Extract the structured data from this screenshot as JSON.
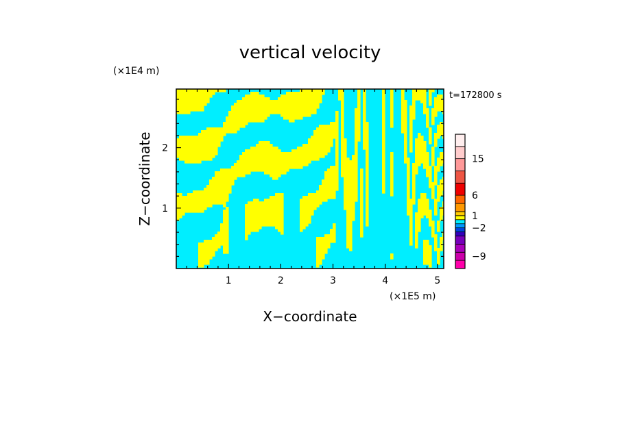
{
  "chart_data": {
    "type": "heatmap",
    "title": "vertical velocity",
    "xlabel": "X−coordinate",
    "ylabel": "Z−coordinate",
    "x_unit": "(×1E5 m)",
    "y_unit": "(×1E4 m)",
    "xlim": [
      0,
      5.12
    ],
    "ylim": [
      0,
      2.97
    ],
    "x_ticks": [
      1,
      2,
      3,
      4,
      5
    ],
    "x_tick_labels": [
      "1",
      "2",
      "3",
      "4",
      "5"
    ],
    "y_ticks": [
      1,
      2
    ],
    "y_tick_labels": [
      "1",
      "2"
    ],
    "time_label": "t=172800 s",
    "colorbar": {
      "bands": [
        {
          "from": -12,
          "to": -10,
          "color": "#ff00aa"
        },
        {
          "from": -10,
          "to": -8,
          "color": "#cc00aa"
        },
        {
          "from": -8,
          "to": -6,
          "color": "#aa00bb"
        },
        {
          "from": -6,
          "to": -4,
          "color": "#7700bb"
        },
        {
          "from": -4,
          "to": -3,
          "color": "#3300bb"
        },
        {
          "from": -3,
          "to": -2,
          "color": "#0044dd"
        },
        {
          "from": -2,
          "to": -1,
          "color": "#0099ff"
        },
        {
          "from": -1,
          "to": 0,
          "color": "#00eeff"
        },
        {
          "from": 0,
          "to": 1,
          "color": "#ffff00"
        },
        {
          "from": 1,
          "to": 2,
          "color": "#ffcc00"
        },
        {
          "from": 2,
          "to": 4,
          "color": "#ff9900"
        },
        {
          "from": 4,
          "to": 6,
          "color": "#ff6600"
        },
        {
          "from": 6,
          "to": 9,
          "color": "#ee0000"
        },
        {
          "from": 9,
          "to": 12,
          "color": "#ee5544"
        },
        {
          "from": 12,
          "to": 15,
          "color": "#ff9999"
        },
        {
          "from": 15,
          "to": 18,
          "color": "#ffcccc"
        },
        {
          "from": 18,
          "to": 21,
          "color": "#ffeeee"
        }
      ],
      "labels": [
        {
          "value": 15,
          "text": "15"
        },
        {
          "value": 6,
          "text": "6"
        },
        {
          "value": 1,
          "text": "1"
        },
        {
          "value": -2,
          "text": "−2"
        },
        {
          "value": -9,
          "text": "−9"
        }
      ]
    },
    "field_colors": {
      "positive": "#ffff00",
      "negative": "#00eeff"
    },
    "field_description_values": {
      "dominant_range_min": -1,
      "dominant_range_max": 1
    }
  }
}
